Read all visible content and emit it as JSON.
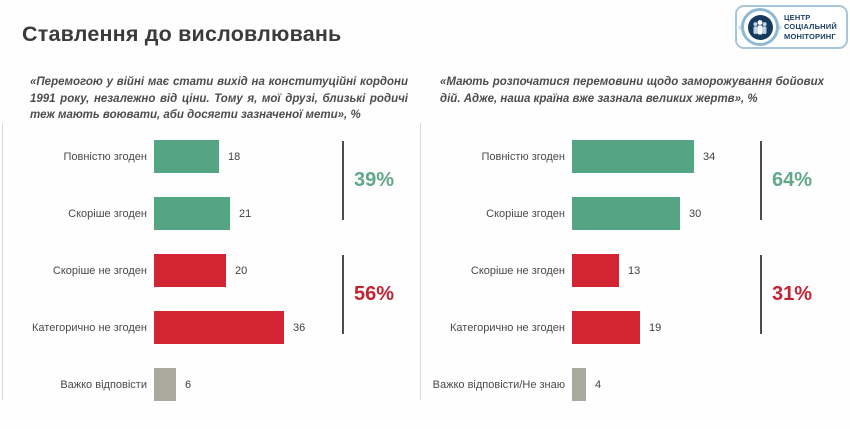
{
  "page": {
    "title": "Ставлення до висловлювань"
  },
  "logo": {
    "lines": [
      "ЦЕНТР",
      "СОЦІАЛЬНИЙ",
      "МОНІТОРИНГ"
    ]
  },
  "colors": {
    "green": "#55a584",
    "red": "#d32433",
    "gray": "#a9a99d",
    "percent_green": "#5fa98a",
    "percent_red": "#c22433",
    "bracket": "#4d4d4d",
    "divider": "#d9d9d9"
  },
  "chart_data": [
    {
      "type": "bar",
      "orientation": "horizontal",
      "title": "«Перемогою у війні має стати вихід на конституційні кордони 1991 року, незалежно від ціни. Тому я, мої друзі, близькі родичі теж мають воювати, аби досягти зазначеної мети», %",
      "categories": [
        "Повністю згоден",
        "Скоріше згоден",
        "Скоріше не згоден",
        "Категорично не згоден",
        "Важко відповісти"
      ],
      "values": [
        18,
        21,
        20,
        36,
        6
      ],
      "bar_colors": [
        "green",
        "green",
        "red",
        "red",
        "gray"
      ],
      "xlim": [
        0,
        40
      ],
      "grid": "off",
      "aggregates": [
        {
          "label": "39%",
          "color": "green",
          "from_row": 0,
          "to_row": 1
        },
        {
          "label": "56%",
          "color": "red",
          "from_row": 2,
          "to_row": 3
        }
      ]
    },
    {
      "type": "bar",
      "orientation": "horizontal",
      "title": "«Мають розпочатися перемовини щодо заморожування бойових дій. Адже, наша країна вже зазнала великих жертв», %",
      "categories": [
        "Повністю згоден",
        "Скоріше згоден",
        "Скоріше не згоден",
        "Категорично не згоден",
        "Важко відповісти/Не знаю"
      ],
      "values": [
        34,
        30,
        13,
        19,
        4
      ],
      "bar_colors": [
        "green",
        "green",
        "red",
        "red",
        "gray"
      ],
      "xlim": [
        0,
        40
      ],
      "grid": "off",
      "aggregates": [
        {
          "label": "64%",
          "color": "green",
          "from_row": 0,
          "to_row": 1
        },
        {
          "label": "31%",
          "color": "red",
          "from_row": 2,
          "to_row": 3
        }
      ]
    }
  ]
}
